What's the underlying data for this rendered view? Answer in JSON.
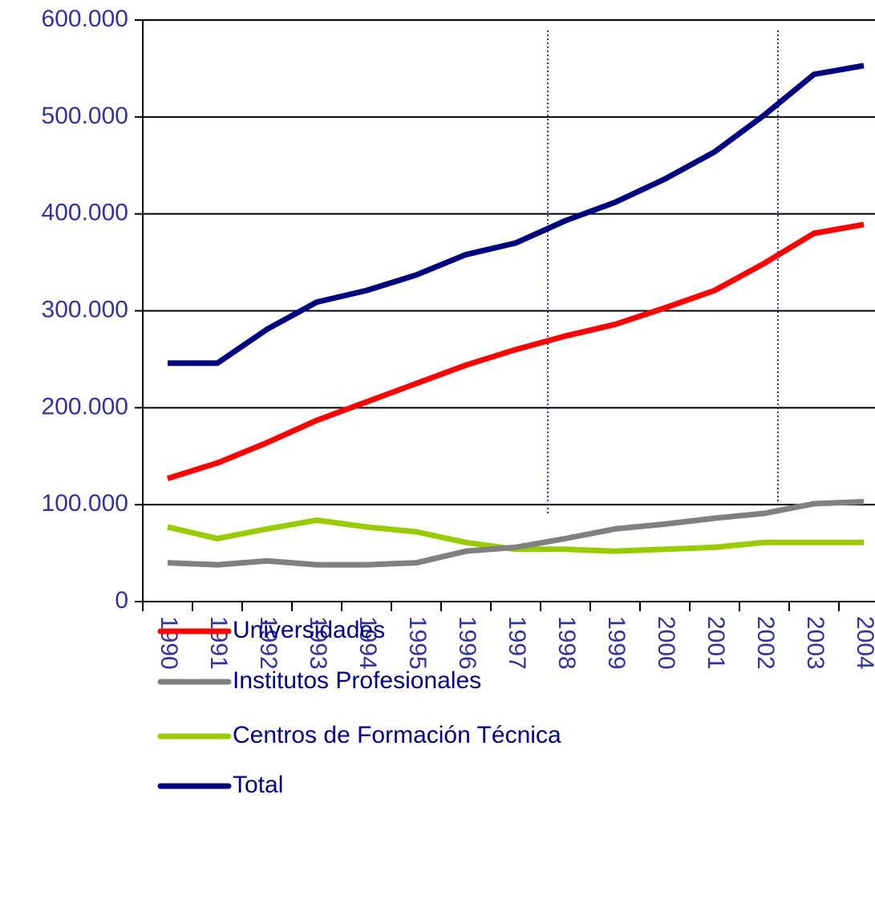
{
  "chart_data": {
    "type": "line",
    "categories": [
      "1990",
      "1991",
      "1992",
      "1993",
      "1994",
      "1995",
      "1996",
      "1997",
      "1998",
      "1999",
      "2000",
      "2001",
      "2002",
      "2003",
      "2004"
    ],
    "series": [
      {
        "name": "Universidades",
        "color": "#ff0000",
        "values": [
          127000,
          143000,
          164000,
          187000,
          206000,
          225000,
          244000,
          260000,
          274000,
          286000,
          303000,
          321000,
          349000,
          380000,
          389000
        ]
      },
      {
        "name": "Institutos Profesionales",
        "color": "#808080",
        "values": [
          40000,
          38000,
          42000,
          38000,
          38000,
          40000,
          52000,
          56000,
          65000,
          75000,
          80000,
          86000,
          91000,
          101000,
          103000
        ]
      },
      {
        "name": "Centros de Formación Técnica",
        "color": "#99cc00",
        "values": [
          77000,
          65000,
          75000,
          84000,
          77000,
          72000,
          61000,
          54000,
          54000,
          52000,
          54000,
          56000,
          61000,
          61000,
          61000
        ]
      },
      {
        "name": "Total",
        "color": "#000080",
        "values": [
          246000,
          246000,
          281000,
          309000,
          321000,
          337000,
          358000,
          370000,
          393000,
          412000,
          436000,
          464000,
          502000,
          544000,
          553000
        ]
      }
    ],
    "ylim": [
      0,
      600000
    ],
    "yticks": [
      0,
      {
        "value": 100000,
        "label": "100.000"
      },
      {
        "value": 200000,
        "label": "200.000"
      },
      {
        "value": 300000,
        "label": "300.000"
      },
      {
        "value": 400000,
        "label": "400.000"
      },
      {
        "value": 500000,
        "label": "500.000"
      },
      {
        "value": 600000,
        "label": "600.000"
      }
    ],
    "grid": true
  }
}
